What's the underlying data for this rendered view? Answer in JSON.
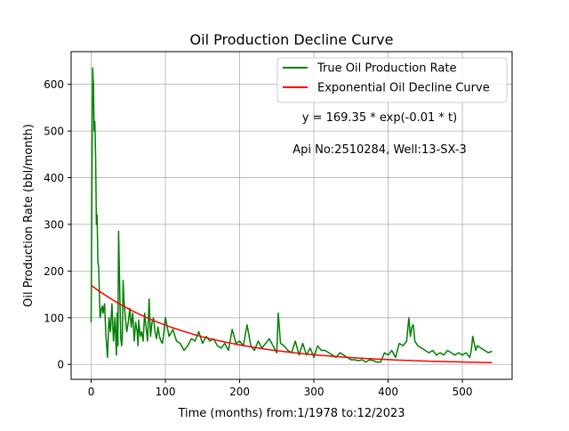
{
  "chart_data": {
    "type": "line",
    "title": "Oil Production Decline Curve",
    "xlabel": "Time (months) from:1/1978 to:12/2023",
    "ylabel": "Oil Production Rate (bbl/month)",
    "xlim": [
      -27,
      567
    ],
    "ylim": [
      -32,
      670
    ],
    "xticks": [
      0,
      100,
      200,
      300,
      400,
      500
    ],
    "yticks": [
      0,
      100,
      200,
      300,
      400,
      500,
      600
    ],
    "grid": true,
    "legend_position": "top-right",
    "annotations": [
      "y = 169.35 * exp(-0.01 * t)",
      "Api No:2510284, Well:13-SX-3"
    ],
    "series": [
      {
        "name": "True Oil Production Rate",
        "color": "#008000",
        "x": [
          0,
          2,
          3,
          4,
          5,
          6,
          7,
          8,
          9,
          10,
          12,
          14,
          15,
          16,
          18,
          20,
          22,
          24,
          26,
          28,
          30,
          32,
          33,
          34,
          35,
          36,
          37,
          38,
          39,
          40,
          41,
          42,
          43,
          44,
          46,
          48,
          50,
          52,
          54,
          56,
          58,
          60,
          62,
          63,
          64,
          66,
          68,
          70,
          72,
          74,
          76,
          78,
          80,
          82,
          84,
          86,
          88,
          90,
          92,
          94,
          96,
          98,
          100,
          105,
          110,
          115,
          120,
          125,
          130,
          135,
          140,
          145,
          150,
          155,
          160,
          165,
          170,
          175,
          180,
          185,
          190,
          195,
          200,
          205,
          210,
          215,
          220,
          225,
          230,
          235,
          240,
          245,
          250,
          252,
          255,
          260,
          265,
          270,
          275,
          280,
          285,
          290,
          295,
          300,
          305,
          310,
          315,
          320,
          325,
          330,
          335,
          340,
          345,
          350,
          355,
          360,
          365,
          370,
          375,
          380,
          385,
          390,
          395,
          400,
          405,
          410,
          415,
          420,
          425,
          428,
          430,
          432,
          434,
          436,
          440,
          445,
          450,
          455,
          460,
          465,
          470,
          475,
          480,
          485,
          490,
          495,
          500,
          505,
          510,
          512,
          514,
          516,
          518,
          520,
          525,
          530,
          535,
          540
        ],
        "values": [
          90,
          635,
          600,
          500,
          520,
          440,
          300,
          320,
          220,
          210,
          100,
          120,
          125,
          110,
          130,
          60,
          15,
          100,
          70,
          130,
          50,
          100,
          60,
          20,
          110,
          40,
          285,
          200,
          120,
          55,
          40,
          60,
          180,
          140,
          100,
          70,
          90,
          120,
          80,
          110,
          50,
          90,
          70,
          40,
          95,
          60,
          70,
          50,
          110,
          80,
          50,
          140,
          60,
          90,
          100,
          70,
          55,
          80,
          60,
          50,
          45,
          70,
          100,
          60,
          75,
          50,
          45,
          30,
          40,
          55,
          50,
          70,
          45,
          60,
          50,
          55,
          40,
          35,
          45,
          30,
          75,
          45,
          50,
          40,
          85,
          40,
          30,
          50,
          35,
          45,
          55,
          40,
          25,
          110,
          45,
          40,
          30,
          25,
          50,
          20,
          45,
          20,
          35,
          15,
          40,
          30,
          30,
          25,
          20,
          15,
          25,
          20,
          15,
          10,
          10,
          8,
          10,
          5,
          10,
          8,
          5,
          5,
          25,
          20,
          30,
          15,
          45,
          40,
          50,
          100,
          60,
          80,
          85,
          50,
          40,
          35,
          30,
          25,
          30,
          20,
          25,
          20,
          30,
          25,
          20,
          25,
          20,
          25,
          15,
          30,
          60,
          45,
          30,
          40,
          35,
          30,
          25,
          28
        ]
      },
      {
        "name": "Exponential Oil Decline Curve",
        "color": "#ff0000",
        "x": [
          0,
          540
        ],
        "equation": {
          "a": 169.35,
          "b": -0.007
        }
      }
    ]
  }
}
